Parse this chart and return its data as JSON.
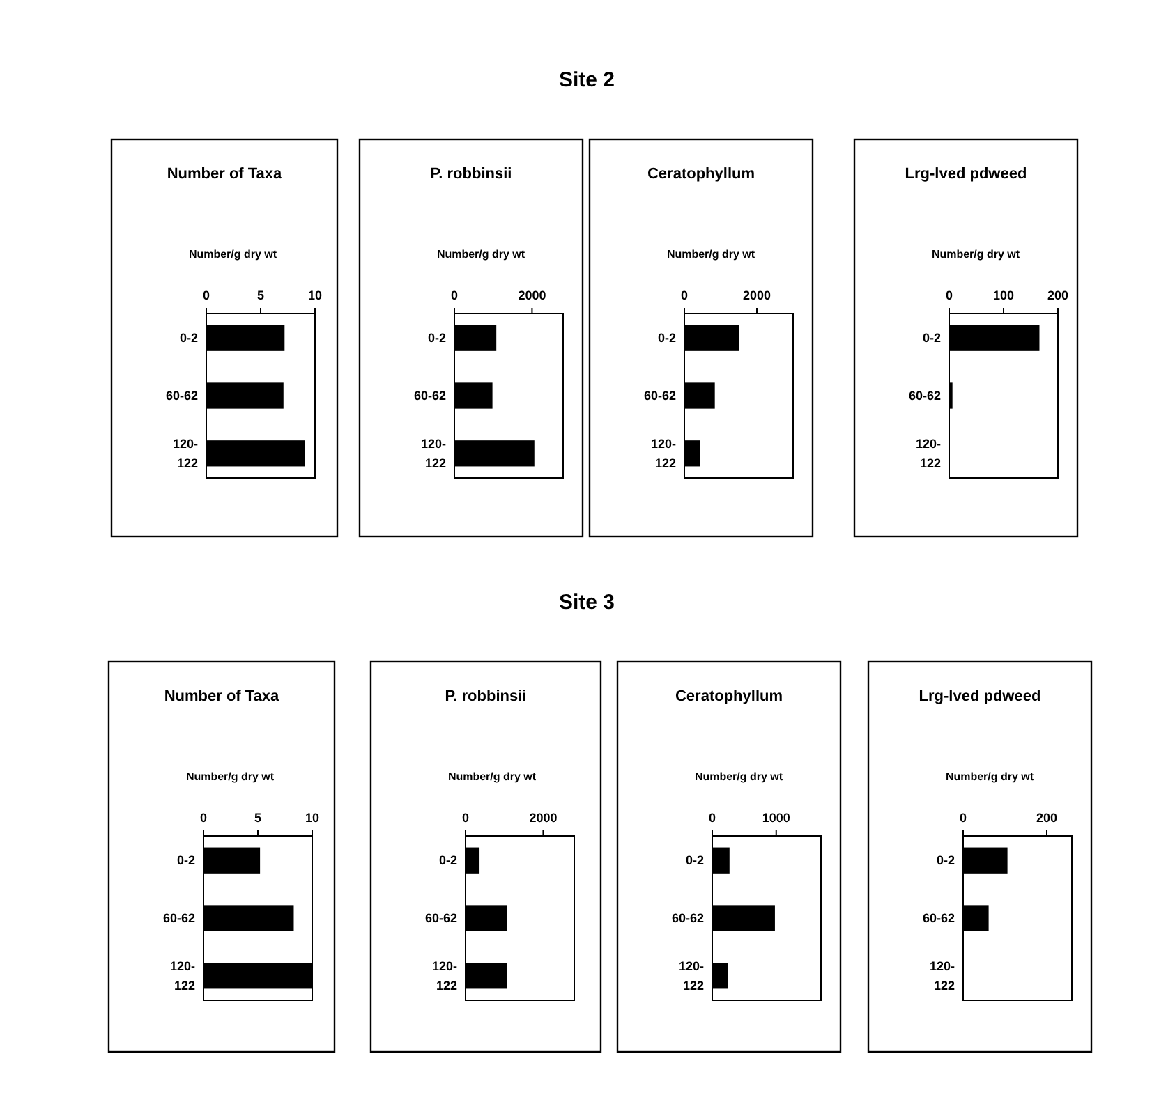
{
  "chart_data": [
    {
      "type": "bar",
      "orientation": "horizontal",
      "title": "Number of Taxa",
      "xlabel": "Number/g dry wt",
      "annotations": [
        "Site 2"
      ],
      "categories": [
        "0-2",
        "60-62",
        "120-122"
      ],
      "values": [
        7.2,
        7.1,
        9.1
      ],
      "color": "#000000",
      "xlim": [
        0,
        10
      ],
      "xticks": [
        0,
        5,
        10
      ],
      "grid": false
    },
    {
      "type": "bar",
      "orientation": "horizontal",
      "title": "P. robbinsii",
      "xlabel": "Number/g dry wt",
      "categories": [
        "0-2",
        "60-62",
        "120-122"
      ],
      "values": [
        1080,
        980,
        2060
      ],
      "color": "#000000",
      "xlim": [
        0,
        2800
      ],
      "xticks": [
        0,
        2000
      ],
      "grid": false
    },
    {
      "type": "bar",
      "orientation": "horizontal",
      "title": "Ceratophyllum",
      "xlabel": "Number/g dry wt",
      "categories": [
        "0-2",
        "60-62",
        "120-122"
      ],
      "values": [
        1500,
        840,
        440
      ],
      "color": "#000000",
      "xlim": [
        0,
        3000
      ],
      "xticks": [
        0,
        2000
      ],
      "grid": false
    },
    {
      "type": "bar",
      "orientation": "horizontal",
      "title": "Lrg-lved pdweed",
      "xlabel": "Number/g dry wt",
      "categories": [
        "0-2",
        "60-62",
        "120-122"
      ],
      "values": [
        166,
        6,
        0
      ],
      "color": "#000000",
      "xlim": [
        0,
        200
      ],
      "xticks": [
        0,
        100,
        200
      ],
      "grid": false
    },
    {
      "type": "bar",
      "orientation": "horizontal",
      "title": "Number of Taxa",
      "xlabel": "Number/g dry wt",
      "annotations": [
        "Site 3"
      ],
      "categories": [
        "0-2",
        "60-62",
        "120-122"
      ],
      "values": [
        5.2,
        8.3,
        10
      ],
      "color": "#000000",
      "xlim": [
        0,
        10
      ],
      "xticks": [
        0,
        5,
        10
      ],
      "grid": false
    },
    {
      "type": "bar",
      "orientation": "horizontal",
      "title": "P. robbinsii",
      "xlabel": "Number/g dry wt",
      "categories": [
        "0-2",
        "60-62",
        "120-122"
      ],
      "values": [
        360,
        1070,
        1070
      ],
      "color": "#000000",
      "xlim": [
        0,
        2800
      ],
      "xticks": [
        0,
        2000
      ],
      "grid": false
    },
    {
      "type": "bar",
      "orientation": "horizontal",
      "title": "Ceratophyllum",
      "xlabel": "Number/g dry wt",
      "categories": [
        "0-2",
        "60-62",
        "120-122"
      ],
      "values": [
        270,
        980,
        250
      ],
      "color": "#000000",
      "xlim": [
        0,
        1700
      ],
      "xticks": [
        0,
        1000
      ],
      "grid": false
    },
    {
      "type": "bar",
      "orientation": "horizontal",
      "title": "Lrg-lved pdweed",
      "xlabel": "Number/g dry wt",
      "categories": [
        "0-2",
        "60-62",
        "120-122"
      ],
      "values": [
        106,
        61,
        0
      ],
      "color": "#000000",
      "xlim": [
        0,
        260
      ],
      "xticks": [
        0,
        200
      ],
      "grid": false
    }
  ]
}
